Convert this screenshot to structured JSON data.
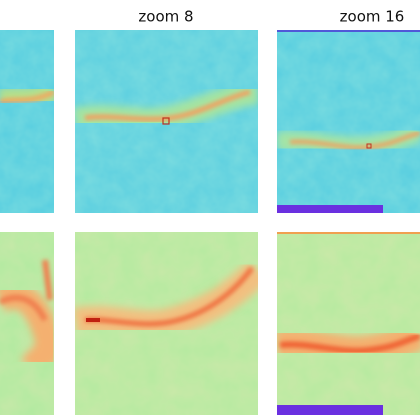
{
  "column_titles": [
    "zoom 8",
    "zoom 16"
  ]
}
